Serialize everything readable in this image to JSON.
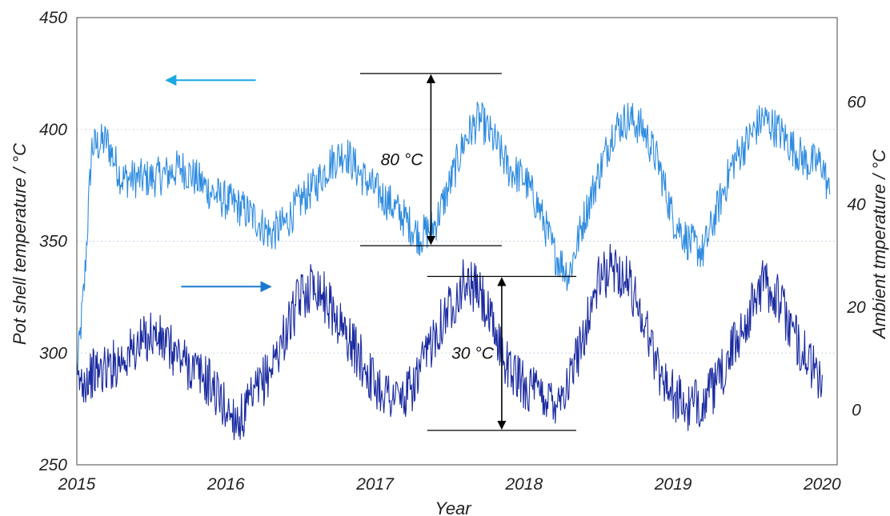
{
  "chart_data": {
    "type": "line",
    "title": "",
    "xlabel": "Year",
    "ylabel_left": "Pot shell temperature  /  °C",
    "ylabel_right": "Ambient tmperature  /  °C",
    "x_ticks": [
      "2015",
      "2016",
      "2017",
      "2018",
      "2019",
      "2020"
    ],
    "xlim": [
      2015.0,
      2020.1
    ],
    "y_left": {
      "ticks": [
        "250",
        "300",
        "350",
        "400",
        "450"
      ],
      "lim": [
        250,
        450
      ]
    },
    "y_right": {
      "ticks": [
        "0",
        "20",
        "40",
        "60"
      ],
      "lim": [
        -10.7,
        76.4
      ]
    },
    "grid": {
      "y": "dotted",
      "x": "none"
    },
    "colors": {
      "pot": "#2e8be0",
      "ambient": "#1a2aa0",
      "arrow_pot": "#1aa8e0",
      "arrow_ambient": "#1a78d0"
    },
    "series": [
      {
        "axis": "left",
        "x": [
          2015.0,
          2015.05,
          2015.1,
          2015.2,
          2015.3,
          2015.4,
          2015.5,
          2015.6,
          2015.7,
          2015.8,
          2015.9,
          2016.0,
          2016.1,
          2016.2,
          2016.3,
          2016.4,
          2016.5,
          2016.6,
          2016.7,
          2016.8,
          2016.9,
          2017.0,
          2017.1,
          2017.2,
          2017.3,
          2017.4,
          2017.5,
          2017.6,
          2017.7,
          2017.8,
          2017.9,
          2018.0,
          2018.1,
          2018.2,
          2018.3,
          2018.4,
          2018.5,
          2018.6,
          2018.7,
          2018.8,
          2018.9,
          2019.0,
          2019.1,
          2019.2,
          2019.3,
          2019.4,
          2019.5,
          2019.6,
          2019.7,
          2019.8,
          2019.9,
          2020.0,
          2020.05
        ],
        "values": [
          290,
          330,
          392,
          395,
          378,
          378,
          378,
          380,
          383,
          378,
          372,
          368,
          365,
          360,
          353,
          358,
          368,
          375,
          385,
          390,
          380,
          373,
          367,
          360,
          352,
          357,
          375,
          395,
          405,
          395,
          382,
          378,
          365,
          345,
          335,
          360,
          380,
          400,
          405,
          400,
          385,
          360,
          350,
          345,
          365,
          385,
          395,
          405,
          400,
          392,
          385,
          385,
          370
        ]
      },
      {
        "axis": "right",
        "x": [
          2015.0,
          2015.1,
          2015.2,
          2015.3,
          2015.4,
          2015.5,
          2015.9,
          2016.0,
          2016.1,
          2016.2,
          2016.3,
          2016.4,
          2016.5,
          2016.6,
          2016.7,
          2016.8,
          2016.9,
          2017.0,
          2017.1,
          2017.2,
          2017.3,
          2017.4,
          2017.5,
          2017.6,
          2017.7,
          2017.8,
          2017.9,
          2018.0,
          2018.1,
          2018.2,
          2018.3,
          2018.4,
          2018.5,
          2018.6,
          2018.7,
          2018.8,
          2018.9,
          2019.0,
          2019.1,
          2019.2,
          2019.3,
          2019.4,
          2019.5,
          2019.6,
          2019.7,
          2019.8,
          2019.9,
          2020.0
        ],
        "values": [
          5,
          7,
          8,
          10,
          12,
          15,
          5,
          0,
          -2,
          3,
          8,
          15,
          22,
          25,
          20,
          15,
          10,
          5,
          3,
          2,
          7,
          15,
          20,
          25,
          23,
          15,
          8,
          5,
          3,
          2,
          5,
          15,
          25,
          28,
          25,
          18,
          8,
          3,
          0,
          2,
          5,
          12,
          18,
          25,
          22,
          15,
          10,
          5
        ]
      }
    ],
    "annotations": [
      {
        "label": "80 °C",
        "axis": "left",
        "x_range": [
          2016.9,
          2017.85
        ],
        "y_range": [
          348,
          425
        ]
      },
      {
        "label": "30 °C",
        "axis": "right",
        "x_range": [
          2017.35,
          2018.35
        ],
        "y_range": [
          -4,
          26
        ]
      }
    ]
  }
}
